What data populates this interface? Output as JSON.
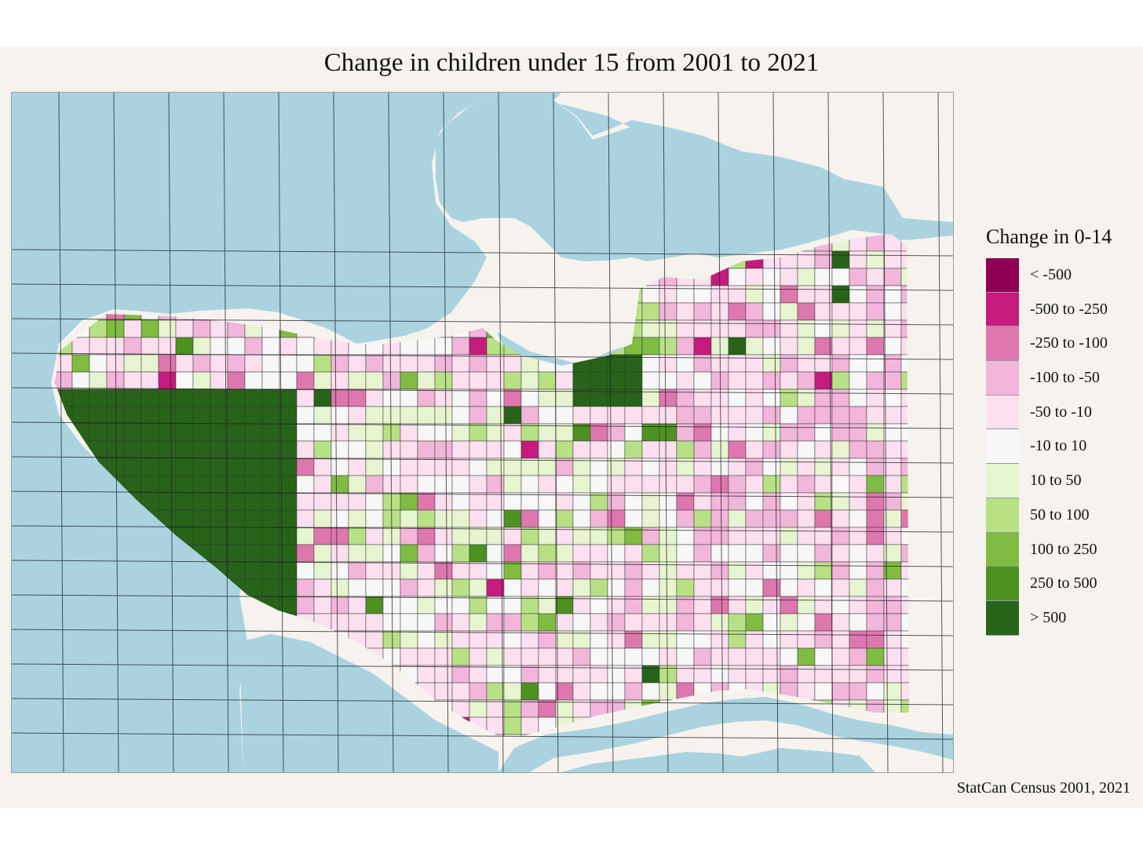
{
  "map": {
    "title": "Change in children under 15 from 2001 to 2021",
    "caption": "StatCan Census 2001, 2021",
    "colors": {
      "water": "#aad3df",
      "land": "#f6f3ef",
      "road": "#222222"
    }
  },
  "legend": {
    "title": "Change in 0-14",
    "items": [
      {
        "label": "< -500",
        "color": "#8e0152"
      },
      {
        "label": "-500 to -250",
        "color": "#c51b7d"
      },
      {
        "label": "-250 to -100",
        "color": "#de77ae"
      },
      {
        "label": "-100 to -50",
        "color": "#f1b6da"
      },
      {
        "label": "-50 to -10",
        "color": "#fde0ef"
      },
      {
        "label": "-10 to 10",
        "color": "#f7f7f7"
      },
      {
        "label": "10 to 50",
        "color": "#e6f5d0"
      },
      {
        "label": "50 to 100",
        "color": "#b8e186"
      },
      {
        "label": "100 to 250",
        "color": "#7fbc41"
      },
      {
        "label": "250 to 500",
        "color": "#4d9221"
      },
      {
        "label": "> 500",
        "color": "#276419"
      }
    ]
  }
}
